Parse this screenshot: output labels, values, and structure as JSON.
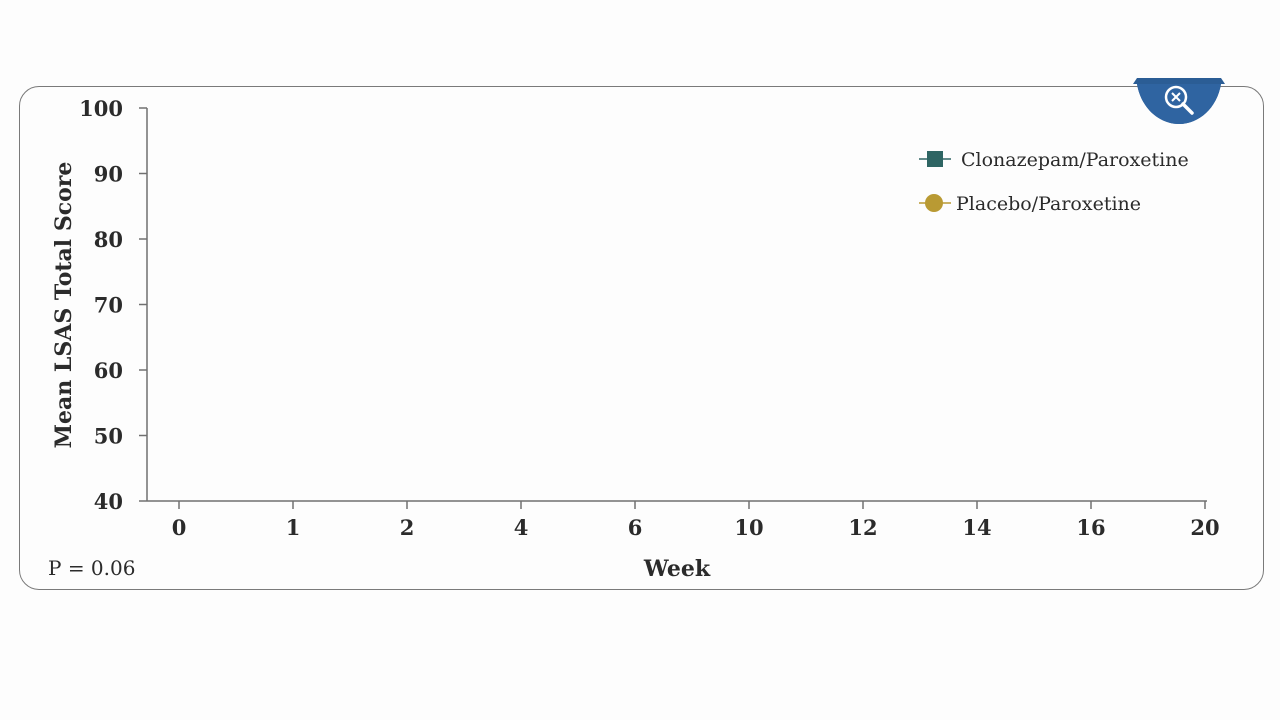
{
  "chart_data": {
    "type": "line",
    "x_categories": [
      "0",
      "1",
      "2",
      "4",
      "6",
      "10",
      "12",
      "14",
      "16",
      "20"
    ],
    "y_ticks": [
      40,
      50,
      60,
      70,
      80,
      90,
      100
    ],
    "ylim": [
      40,
      100
    ],
    "xlabel": "Week",
    "ylabel": "Mean LSAS Total Score",
    "grid": false,
    "legend_position": "top-right",
    "series": [
      {
        "name": "Clonazepam/Paroxetine",
        "marker": "square",
        "color": "#2e6563",
        "values": []
      },
      {
        "name": "Placebo/Paroxetine",
        "marker": "circle",
        "color": "#b99a33",
        "values": []
      }
    ]
  },
  "annotation": {
    "p_value": "P = 0.06"
  },
  "zoom_button": {
    "icon": "zoom-out-icon",
    "color": "#2b5d95"
  }
}
